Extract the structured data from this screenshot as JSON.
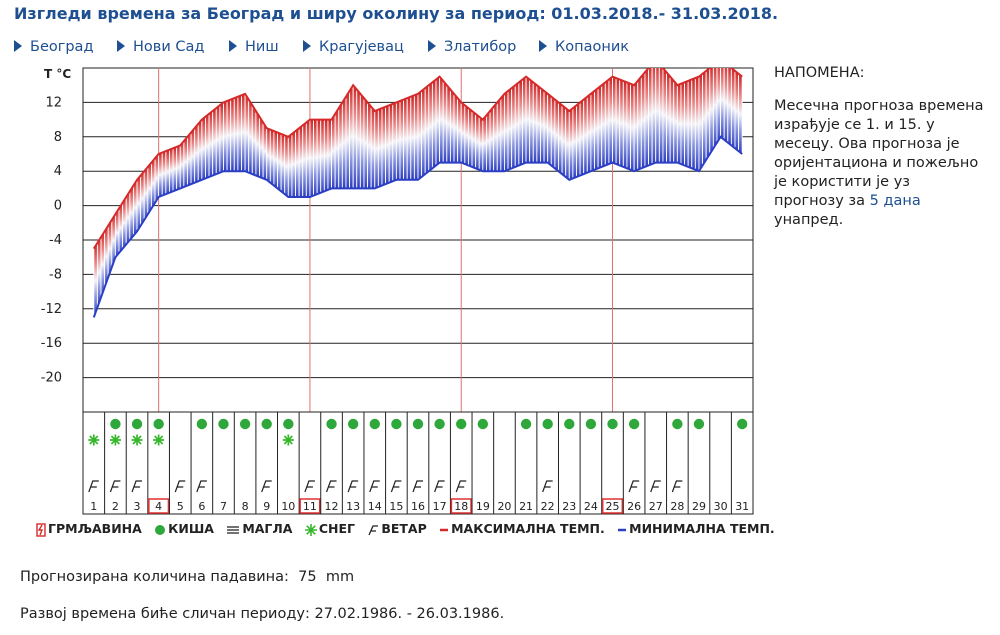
{
  "page": {
    "title": "Изгледи времена за Београд и ширу околину за период: 01.03.2018.- 31.03.2018.",
    "cities": [
      "Београд",
      "Нови Сад",
      "Ниш",
      "Крагујевац",
      "Златибор",
      "Копаоник"
    ]
  },
  "note": {
    "title": "НАПОМЕНА:",
    "text": "Месечна прогноза времена израђује се 1. и 15. у месецу. Ова прогноза је оријентациона и пожељно је користити је уз прогнозу за",
    "link": "5 дана",
    "text_end": "унапред."
  },
  "legend": {
    "thunder": "ГРМЉАВИНА",
    "rain": "КИША",
    "fog": "МАГЛА",
    "snow": "СНЕГ",
    "wind": "ВЕТАР",
    "max": "МАКСИМАЛНА ТЕМП.",
    "min": "МИНИМАЛНА ТЕМП."
  },
  "precip": {
    "label": "Прогнозирана количина падавина:",
    "value": "75",
    "unit": "mm"
  },
  "similar": {
    "label": "Развој времена биће сличан периоду:",
    "value": "27.02.1986. - 26.03.1986."
  },
  "colors": {
    "max": "#d62a2a",
    "min": "#2a3fc4",
    "rain": "#2ea83a",
    "snow": "#37b82c",
    "title": "#1d4f91",
    "highlight": "#e03030"
  },
  "chart_data": {
    "type": "line",
    "ylabel": "T °C",
    "yticks": [
      12,
      8,
      4,
      0,
      -4,
      -8,
      -12,
      -16,
      -20
    ],
    "ylim": [
      -24,
      16
    ],
    "x": [
      1,
      2,
      3,
      4,
      5,
      6,
      7,
      8,
      9,
      10,
      11,
      12,
      13,
      14,
      15,
      16,
      17,
      18,
      19,
      20,
      21,
      22,
      23,
      24,
      25,
      26,
      27,
      28,
      29,
      30,
      31
    ],
    "series": [
      {
        "name": "МАКСИМАЛНА ТЕМП.",
        "values": [
          -5,
          -1,
          3,
          6,
          7,
          10,
          12,
          13,
          9,
          8,
          10,
          10,
          14,
          11,
          12,
          13,
          15,
          12,
          10,
          13,
          15,
          13,
          11,
          13,
          15,
          14,
          17,
          14,
          15,
          17,
          15
        ]
      },
      {
        "name": "МИНИМАЛНА ТЕМП.",
        "values": [
          -13,
          -6,
          -3,
          1,
          2,
          3,
          4,
          4,
          3,
          1,
          1,
          2,
          2,
          2,
          3,
          3,
          5,
          5,
          4,
          4,
          5,
          5,
          3,
          4,
          5,
          4,
          5,
          5,
          4,
          8,
          6
        ]
      }
    ],
    "rain_days": [
      2,
      3,
      4,
      6,
      7,
      8,
      9,
      10,
      12,
      13,
      14,
      15,
      16,
      17,
      18,
      19,
      21,
      22,
      23,
      24,
      25,
      26,
      28,
      29,
      31
    ],
    "snow_days": [
      1,
      2,
      3,
      4,
      10
    ],
    "wind_days": [
      1,
      2,
      3,
      5,
      6,
      9,
      11,
      12,
      13,
      14,
      15,
      16,
      17,
      18,
      22,
      26,
      27,
      28
    ],
    "highlighted_days": [
      4,
      11,
      18,
      25
    ]
  }
}
